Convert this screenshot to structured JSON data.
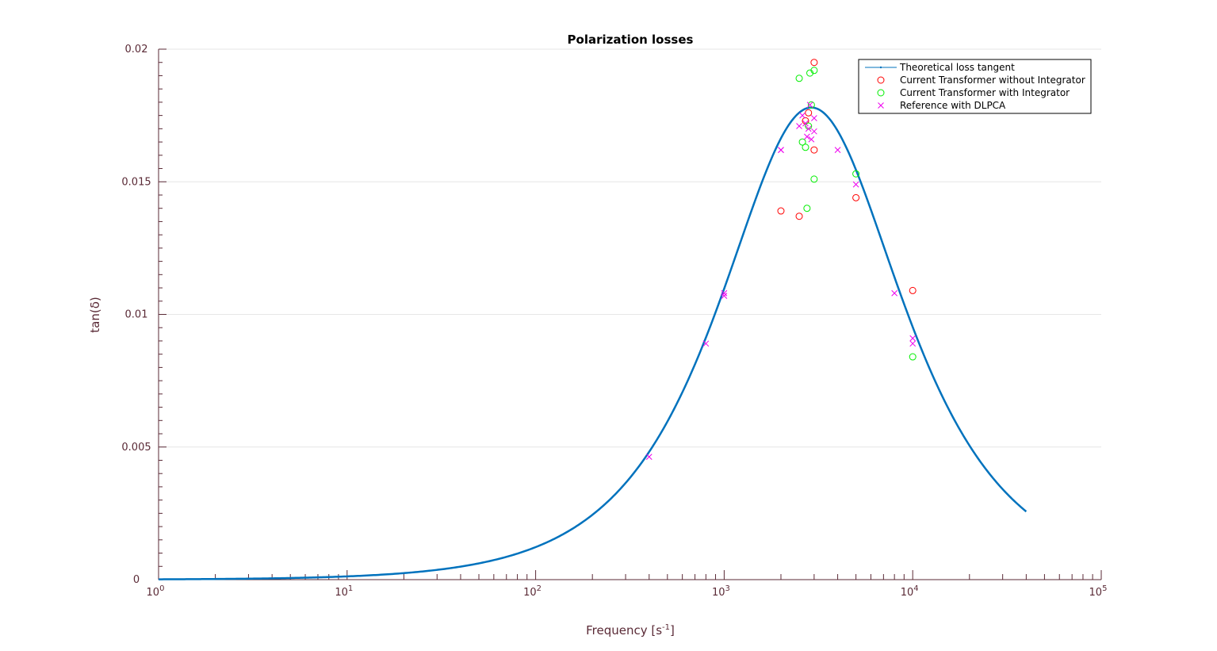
{
  "chart_data": {
    "type": "scatter",
    "title": "Polarization losses",
    "xlabel": {
      "base": "Frequency [s",
      "sup": "-1",
      "end": "]"
    },
    "ylabel": "tan(δ)",
    "x_scale": "log",
    "xlim": [
      1,
      100000
    ],
    "ylim": [
      0,
      0.02
    ],
    "x_ticks": [
      {
        "base": "10",
        "exp": "0",
        "value": 1
      },
      {
        "base": "10",
        "exp": "1",
        "value": 10
      },
      {
        "base": "10",
        "exp": "2",
        "value": 100
      },
      {
        "base": "10",
        "exp": "3",
        "value": 1000
      },
      {
        "base": "10",
        "exp": "4",
        "value": 10000
      },
      {
        "base": "10",
        "exp": "5",
        "value": 100000
      }
    ],
    "y_ticks": [
      {
        "label": "0",
        "value": 0
      },
      {
        "label": "0.005",
        "value": 0.005
      },
      {
        "label": "0.01",
        "value": 0.01
      },
      {
        "label": "0.015",
        "value": 0.015
      },
      {
        "label": "0.02",
        "value": 0.02
      }
    ],
    "grid": "horizontal",
    "legend_position": "top-right",
    "colors": {
      "theory": "#0072bd",
      "ct_without": "#ff0000",
      "ct_with": "#00ee00",
      "reference": "#ee00ee",
      "axis": "#5a2a36",
      "grid": "#e6e6e6"
    },
    "theory": {
      "name": "Theoretical loss tangent",
      "peak_frequency": 2900,
      "peak_value": 0.0178,
      "x_range": [
        1,
        40000
      ]
    },
    "series": [
      {
        "name": "Current Transformer without Integrator",
        "marker": "circle",
        "points": [
          [
            2000,
            0.0139
          ],
          [
            2500,
            0.0137
          ],
          [
            2700,
            0.0173
          ],
          [
            2800,
            0.0176
          ],
          [
            3000,
            0.0195
          ],
          [
            3000,
            0.0162
          ],
          [
            5000,
            0.0144
          ],
          [
            10000,
            0.0109
          ]
        ]
      },
      {
        "name": "Current Transformer with Integrator",
        "marker": "circle",
        "points": [
          [
            2500,
            0.0189
          ],
          [
            2600,
            0.0165
          ],
          [
            2700,
            0.0163
          ],
          [
            2750,
            0.014
          ],
          [
            2800,
            0.0171
          ],
          [
            2850,
            0.0191
          ],
          [
            2900,
            0.0179
          ],
          [
            3000,
            0.0192
          ],
          [
            3000,
            0.0151
          ],
          [
            5000,
            0.0153
          ],
          [
            10000,
            0.0084
          ]
        ]
      },
      {
        "name": "Reference with DLPCA",
        "marker": "cross",
        "points": [
          [
            400,
            0.00463
          ],
          [
            800,
            0.0089
          ],
          [
            1000,
            0.0108
          ],
          [
            1000,
            0.0107
          ],
          [
            2000,
            0.0162
          ],
          [
            2000,
            0.0162
          ],
          [
            2500,
            0.0171
          ],
          [
            2600,
            0.0175
          ],
          [
            2700,
            0.0172
          ],
          [
            2750,
            0.0167
          ],
          [
            2800,
            0.017
          ],
          [
            2850,
            0.0179
          ],
          [
            2900,
            0.0166
          ],
          [
            3000,
            0.0174
          ],
          [
            3000,
            0.0169
          ],
          [
            4000,
            0.0162
          ],
          [
            5000,
            0.0149
          ],
          [
            8000,
            0.0108
          ],
          [
            10000,
            0.0091
          ],
          [
            10000,
            0.0089
          ]
        ]
      }
    ]
  }
}
